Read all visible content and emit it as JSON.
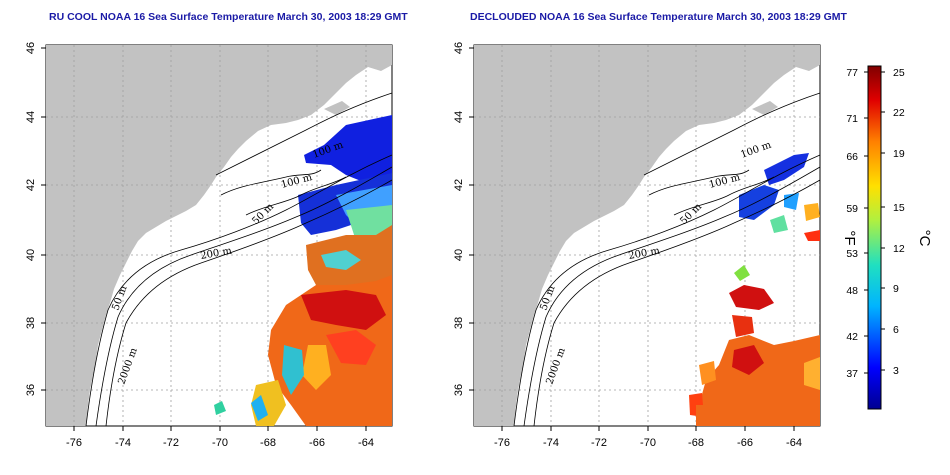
{
  "panels": [
    {
      "title": "RU COOL NOAA 16 Sea Surface Temperature March 30, 2003 18:29 GMT",
      "contour_labels": [
        "100 m",
        "100 m",
        "50 m",
        "200 m",
        "50 m",
        "2000 m"
      ]
    },
    {
      "title": "DECLOUDED NOAA 16 Sea Surface Temperature March 30, 2003 18:29 GMT",
      "contour_labels": [
        "100 m",
        "100 m",
        "50 m",
        "200 m",
        "50 m",
        "2000 m"
      ]
    }
  ],
  "axes": {
    "lat_ticks": [
      "36",
      "38",
      "40",
      "42",
      "44",
      "46"
    ],
    "lon_ticks": [
      "-76",
      "-74",
      "-72",
      "-70",
      "-68",
      "-66",
      "-64"
    ]
  },
  "colorbar": {
    "fahrenheit_ticks": [
      "77",
      "71",
      "66",
      "59",
      "53",
      "48",
      "42",
      "37"
    ],
    "celsius_ticks": [
      "25",
      "22",
      "19",
      "15",
      "12",
      "9",
      "6",
      "3"
    ],
    "fahrenheit_unit": "°F",
    "celsius_unit": "°C"
  },
  "colors": {
    "land": "#c2c2c2",
    "ocean": "#ffffff",
    "title": "#1a1aa6",
    "gridline": "#a0a0a0"
  }
}
